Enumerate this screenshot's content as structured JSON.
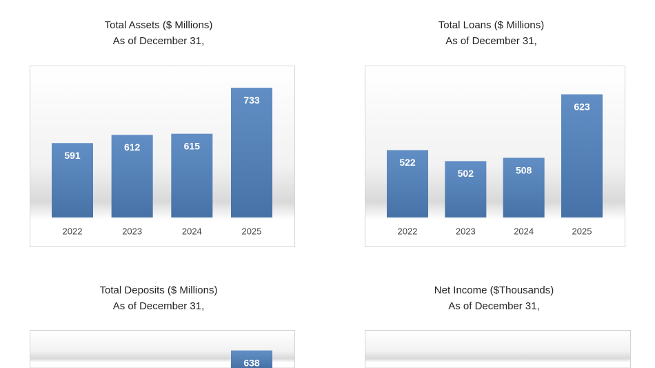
{
  "chart_data": [
    {
      "type": "bar",
      "title": "Total Assets ($ Millions)",
      "subtitle": "As of December 31,",
      "categories": [
        "2022",
        "2023",
        "2024",
        "2025"
      ],
      "values": [
        591,
        612,
        615,
        733
      ],
      "ylim": [
        400,
        790
      ],
      "color": "#4f81bd"
    },
    {
      "type": "bar",
      "title": "Total Loans ($ Millions)",
      "subtitle": "As of December 31,",
      "categories": [
        "2022",
        "2023",
        "2024",
        "2025"
      ],
      "values": [
        522,
        502,
        508,
        623
      ],
      "ylim": [
        400,
        675
      ],
      "color": "#4f81bd"
    },
    {
      "type": "bar",
      "title": "Total Deposits ($ Millions)",
      "subtitle": "As of December 31,",
      "categories": [
        null,
        null,
        null,
        null
      ],
      "values": [
        null,
        null,
        null,
        638
      ],
      "ylim": [
        400,
        675
      ],
      "color": "#4f81bd"
    },
    {
      "type": "bar",
      "title": "Net Income ($Thousands)",
      "subtitle": "As of December 31,",
      "color": "#4f81bd"
    }
  ]
}
